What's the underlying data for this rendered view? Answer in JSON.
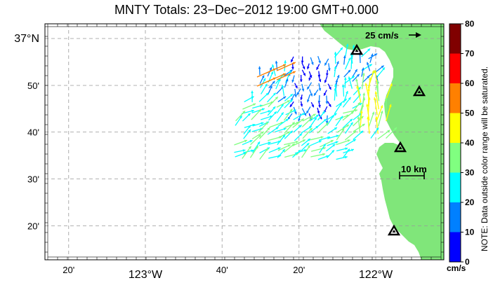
{
  "title": "MNTY Totals: 23−Dec−2012 19:00 GMT+0.000",
  "map": {
    "land_color": "#80e67a",
    "lon_ticks": [
      {
        "lon": -123.333,
        "label": "20'",
        "major": false
      },
      {
        "lon": -123.0,
        "label": "123°W",
        "major": true
      },
      {
        "lon": -122.667,
        "label": "40'",
        "major": false
      },
      {
        "lon": -122.333,
        "label": "20'",
        "major": false
      },
      {
        "lon": -122.0,
        "label": "122°W",
        "major": true
      }
    ],
    "lat_ticks": [
      {
        "lat": 37.0,
        "label": "37°N",
        "major": true
      },
      {
        "lat": 36.833,
        "label": "50'",
        "major": false
      },
      {
        "lat": 36.667,
        "label": "40'",
        "major": false
      },
      {
        "lat": 36.5,
        "label": "30'",
        "major": false
      },
      {
        "lat": 36.333,
        "label": "20'",
        "major": false
      }
    ],
    "reference_vector_label": "25 cm/s",
    "scale_bar_label": "10 km",
    "stations_count_hint": 4
  },
  "colorbar": {
    "ticks": [
      "0",
      "10",
      "20",
      "30",
      "40",
      "50",
      "60",
      "70",
      "80"
    ],
    "colors": [
      "#0000ff",
      "#0080ff",
      "#00ffff",
      "#80ff80",
      "#ffff00",
      "#ff8000",
      "#ff0000",
      "#800000"
    ],
    "unit": "cm/s",
    "note": "NOTE: Data outside color range will be saturated."
  }
}
